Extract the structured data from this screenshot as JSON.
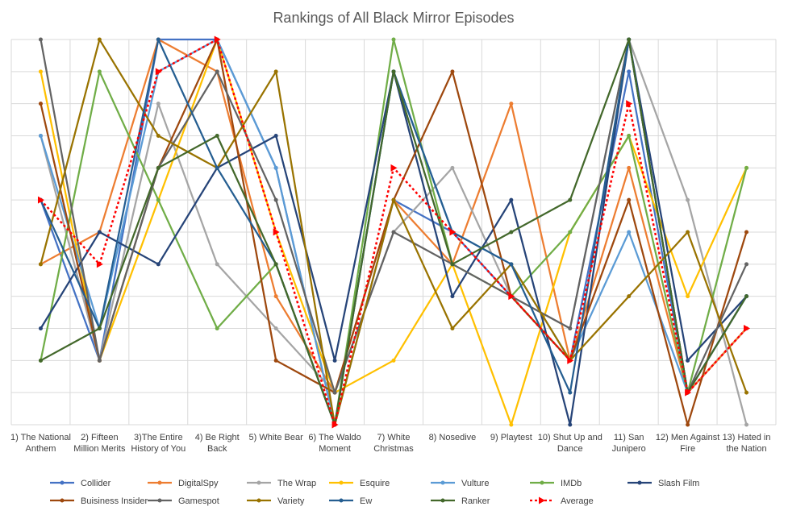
{
  "chart_data": {
    "type": "line",
    "title": "Rankings of All Black Mirror Episodes",
    "categories": [
      "1) The National Anthem",
      "2) Fifteen Million Merits",
      "3)The Entire History of You",
      "4) Be Right Back",
      "5) White Bear",
      "6) The Waldo Moment",
      "7) White Christmas",
      "8) Nosedive",
      "9) Playtest",
      "10) Shut Up and Dance",
      "11) San Junipero",
      "12) Men Against Fire",
      "13) Hated in the Nation"
    ],
    "ylim": [
      1,
      13
    ],
    "grid": true,
    "legend_position": "bottom",
    "series": [
      {
        "name": "Collider",
        "color": "#4472C4",
        "dashed": false,
        "values": [
          8,
          3,
          13,
          13,
          9,
          1,
          8,
          7,
          5,
          3,
          12,
          2,
          4
        ]
      },
      {
        "name": "DigitalSpy",
        "color": "#ED7D31",
        "dashed": false,
        "values": [
          6,
          7,
          13,
          12,
          5,
          2,
          8,
          6,
          11,
          3,
          9,
          2,
          4
        ]
      },
      {
        "name": "The Wrap",
        "color": "#A5A5A5",
        "dashed": false,
        "values": [
          10,
          3,
          11,
          6,
          4,
          2,
          7,
          9,
          5,
          4,
          13,
          8,
          1
        ]
      },
      {
        "name": "Esquire",
        "color": "#FFC000",
        "dashed": false,
        "values": [
          12,
          3,
          8,
          13,
          7,
          2,
          3,
          6,
          1,
          7,
          10,
          5,
          9
        ]
      },
      {
        "name": "Vulture",
        "color": "#5B9BD5",
        "dashed": false,
        "values": [
          10,
          4,
          12,
          13,
          9,
          1,
          12,
          7,
          6,
          3,
          7,
          2,
          5
        ]
      },
      {
        "name": "IMDb",
        "color": "#70AD47",
        "dashed": false,
        "values": [
          3,
          12,
          8,
          4,
          6,
          1,
          13,
          6,
          5,
          7,
          10,
          2,
          9
        ]
      },
      {
        "name": "Slash Film",
        "color": "#264478",
        "dashed": false,
        "values": [
          4,
          7,
          6,
          9,
          10,
          3,
          12,
          5,
          8,
          1,
          13,
          3,
          5
        ]
      },
      {
        "name": "Buisiness Insider",
        "color": "#9E480E",
        "dashed": false,
        "values": [
          11,
          3,
          9,
          13,
          3,
          2,
          8,
          12,
          5,
          3,
          8,
          1,
          7
        ]
      },
      {
        "name": "Gamespot",
        "color": "#636363",
        "dashed": false,
        "values": [
          13,
          3,
          9,
          12,
          8,
          2,
          7,
          6,
          5,
          4,
          13,
          2,
          6
        ]
      },
      {
        "name": "Variety",
        "color": "#997300",
        "dashed": false,
        "values": [
          6,
          13,
          10,
          9,
          12,
          1,
          8,
          4,
          6,
          3,
          5,
          7,
          2
        ]
      },
      {
        "name": "Ew",
        "color": "#255E91",
        "dashed": false,
        "values": [
          8,
          4,
          13,
          9,
          6,
          1,
          12,
          7,
          6,
          2,
          13,
          2,
          5
        ]
      },
      {
        "name": "Ranker",
        "color": "#43682B",
        "dashed": false,
        "values": [
          3,
          4,
          9,
          10,
          6,
          1,
          12,
          6,
          7,
          8,
          13,
          2,
          5
        ]
      },
      {
        "name": "Average",
        "color": "#FF0000",
        "dashed": true,
        "values": [
          8,
          6,
          12,
          13,
          7,
          1,
          9,
          7,
          5,
          3,
          11,
          2,
          4
        ]
      }
    ]
  }
}
